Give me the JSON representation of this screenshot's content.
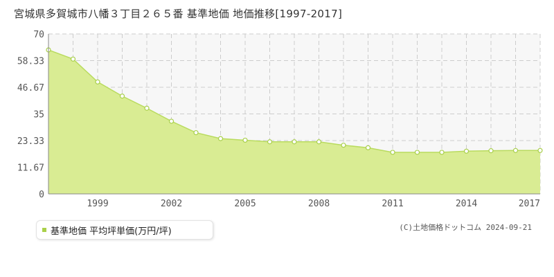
{
  "title": "宮城県多賀城市八幡３丁目２６５番 基準地価 地価推移[1997-2017]",
  "legend_label": "基準地価 平均坪単価(万円/坪)",
  "copyright": "(C)土地価格ドットコム 2024-09-21",
  "colors": {
    "area_fill": "#d9ec93",
    "line": "#b9db5e",
    "marker_fill": "#ffffff",
    "marker_stroke": "#a8cf4a",
    "grid": "#cccccc",
    "plot_bg": "#f7f7f7",
    "legend_marker": "#aad04a"
  },
  "chart_data": {
    "type": "area",
    "title": "宮城県多賀城市八幡３丁目２６５番 基準地価 地価推移[1997-2017]",
    "xlabel": "",
    "ylabel": "",
    "xlim": [
      1997,
      2017
    ],
    "ylim": [
      0,
      70
    ],
    "yticks": [
      0,
      11.67,
      23.33,
      35,
      46.67,
      58.33,
      70
    ],
    "xticks": [
      1999,
      2002,
      2005,
      2008,
      2011,
      2014,
      2017
    ],
    "grid": true,
    "legend_position": "bottom-left",
    "series": [
      {
        "name": "基準地価 平均坪単価(万円/坪)",
        "x": [
          1997,
          1998,
          1999,
          2000,
          2001,
          2002,
          2003,
          2004,
          2005,
          2006,
          2007,
          2008,
          2009,
          2010,
          2011,
          2012,
          2013,
          2014,
          2015,
          2016,
          2017
        ],
        "values": [
          63.0,
          59.0,
          49.0,
          42.8,
          37.5,
          31.8,
          26.8,
          24.2,
          23.5,
          22.8,
          22.8,
          22.8,
          21.3,
          20.2,
          18.2,
          18.2,
          18.2,
          18.7,
          18.9,
          19.0,
          19.0
        ]
      }
    ]
  }
}
